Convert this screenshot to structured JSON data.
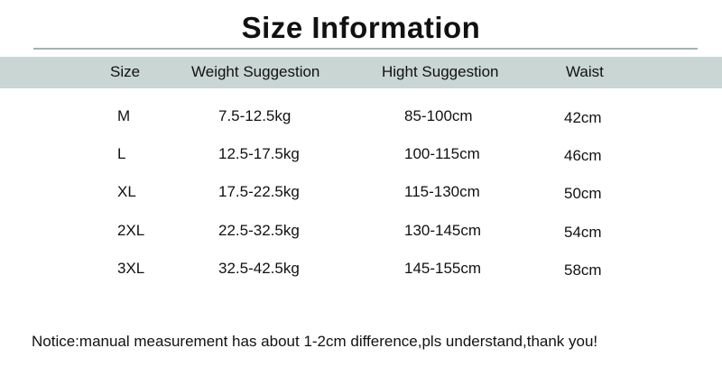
{
  "title": "Size Information",
  "headers": [
    "Size",
    "Weight Suggestion",
    "Hight Suggestion",
    "Waist"
  ],
  "rows": [
    [
      "M",
      "7.5-12.5kg",
      "85-100cm",
      "42cm"
    ],
    [
      "L",
      "12.5-17.5kg",
      "100-115cm",
      "46cm"
    ],
    [
      "XL",
      "17.5-22.5kg",
      "115-130cm",
      "50cm"
    ],
    [
      "2XL",
      "22.5-32.5kg",
      "130-145cm",
      "54cm"
    ],
    [
      "3XL",
      "32.5-42.5kg",
      "145-155cm",
      "58cm"
    ]
  ],
  "notice": "Notice:manual measurement has about 1-2cm difference,pls understand,thank you!",
  "colors": {
    "header_band": "#c9d6d3",
    "rule": "#a3b3b3"
  }
}
